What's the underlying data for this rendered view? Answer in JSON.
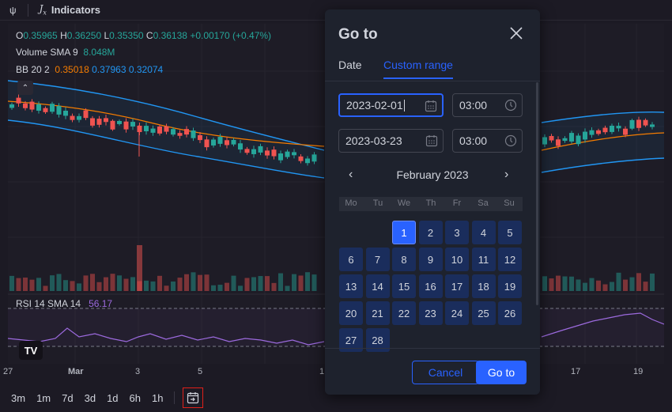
{
  "topbar": {
    "compare_icon": "ψ",
    "indicators_icon": "fx-icon",
    "indicators_label": "Indicators"
  },
  "legend": {
    "ohlc": {
      "o_label": "O",
      "o_value": "0.35965",
      "h_label": "H",
      "h_value": "0.36250",
      "l_label": "L",
      "l_value": "0.35350",
      "c_label": "C",
      "c_value": "0.36138",
      "change": "+0.00170 (+0.47%)"
    },
    "volume": {
      "label": "Volume SMA 9",
      "value": "8.048M"
    },
    "bb": {
      "label": "BB 20 2",
      "v1": "0.35018",
      "v2": "0.37963",
      "v3": "0.32074"
    },
    "rsi": {
      "label": "RSI 14 SMA 14",
      "value": "56.17"
    }
  },
  "xaxis_labels": [
    "27",
    "Mar",
    "3",
    "5",
    "1",
    "17",
    "19"
  ],
  "timeframes": [
    "3m",
    "1m",
    "7d",
    "3d",
    "1d",
    "6h",
    "1h"
  ],
  "modal": {
    "title": "Go to",
    "tabs": [
      "Date",
      "Custom range"
    ],
    "active_tab": "Custom range",
    "start_date": "2023-02-01",
    "start_time": "03:00",
    "end_date": "2023-03-23",
    "end_time": "03:00",
    "month_label": "February 2023",
    "weekdays": [
      "Mo",
      "Tu",
      "We",
      "Th",
      "Fr",
      "Sa",
      "Su"
    ],
    "days": [
      "1",
      "2",
      "3",
      "4",
      "5",
      "6",
      "7",
      "8",
      "9",
      "10",
      "11",
      "12",
      "13",
      "14",
      "15",
      "16",
      "17",
      "18",
      "19",
      "20",
      "21",
      "22",
      "23",
      "24",
      "25",
      "26",
      "27",
      "28"
    ],
    "first_weekday_index": 2,
    "selected_day": "1",
    "cancel_label": "Cancel",
    "goto_label": "Go to"
  },
  "colors": {
    "accent": "#2962ff",
    "up": "#26a69a",
    "down": "#ef5350",
    "bb_basis": "#f57c00",
    "bb_bands": "#2196f3",
    "rsi": "#9c6ade"
  }
}
